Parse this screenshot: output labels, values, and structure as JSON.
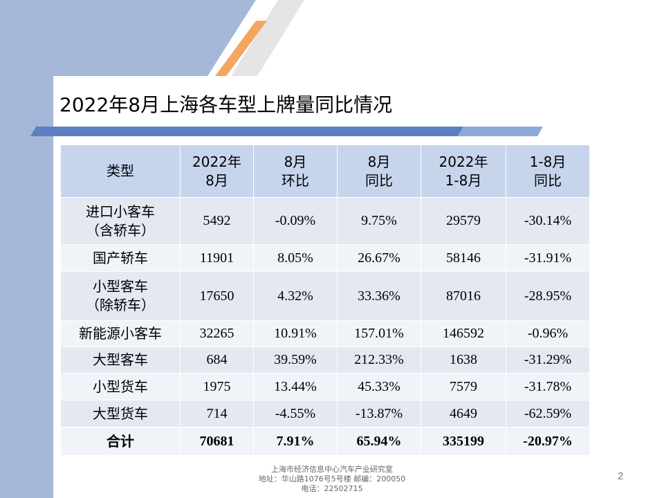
{
  "slide": {
    "title": "2022年8月上海各车型上牌量同比情况",
    "page_number": "2"
  },
  "table": {
    "headers": [
      [
        "类型"
      ],
      [
        "2022年",
        "8月"
      ],
      [
        "8月",
        "环比"
      ],
      [
        "8月",
        "同比"
      ],
      [
        "2022年",
        "1-8月"
      ],
      [
        "1-8月",
        "同比"
      ]
    ],
    "rows": [
      {
        "type": [
          "进口小客车",
          "（含轿车）"
        ],
        "aug_2022": "5492",
        "aug_mom": "-0.09%",
        "aug_yoy": "9.75%",
        "jan_aug_2022": "29579",
        "jan_aug_yoy": "-30.14%"
      },
      {
        "type": [
          "国产轿车"
        ],
        "aug_2022": "11901",
        "aug_mom": "8.05%",
        "aug_yoy": "26.67%",
        "jan_aug_2022": "58146",
        "jan_aug_yoy": "-31.91%"
      },
      {
        "type": [
          "小型客车",
          "（除轿车）"
        ],
        "aug_2022": "17650",
        "aug_mom": "4.32%",
        "aug_yoy": "33.36%",
        "jan_aug_2022": "87016",
        "jan_aug_yoy": "-28.95%"
      },
      {
        "type": [
          "新能源小客车"
        ],
        "aug_2022": "32265",
        "aug_mom": "10.91%",
        "aug_yoy": "157.01%",
        "jan_aug_2022": "146592",
        "jan_aug_yoy": "-0.96%"
      },
      {
        "type": [
          "大型客车"
        ],
        "aug_2022": "684",
        "aug_mom": "39.59%",
        "aug_yoy": "212.33%",
        "jan_aug_2022": "1638",
        "jan_aug_yoy": "-31.29%"
      },
      {
        "type": [
          "小型货车"
        ],
        "aug_2022": "1975",
        "aug_mom": "13.44%",
        "aug_yoy": "45.33%",
        "jan_aug_2022": "7579",
        "jan_aug_yoy": "-31.78%"
      },
      {
        "type": [
          "大型货车"
        ],
        "aug_2022": "714",
        "aug_mom": "-4.55%",
        "aug_yoy": "-13.87%",
        "jan_aug_2022": "4649",
        "jan_aug_yoy": "-62.59%"
      },
      {
        "type": [
          "合计"
        ],
        "aug_2022": "70681",
        "aug_mom": "7.91%",
        "aug_yoy": "65.94%",
        "jan_aug_2022": "335199",
        "jan_aug_yoy": "-20.97%"
      }
    ]
  },
  "footer": {
    "line1": "上海市经济信息中心汽车产业研究室",
    "line2": "地址：华山路1076号5号楼   邮编：200050",
    "line3": "电话：22502715"
  },
  "colors": {
    "left_band": "#a5b8d9",
    "accent_orange": "#f3a561",
    "stripe_blue": "#5b7fc0",
    "header_fill": "#c6d5ec",
    "row_odd": "#e3e8f1",
    "row_even": "#f0f3f8"
  }
}
